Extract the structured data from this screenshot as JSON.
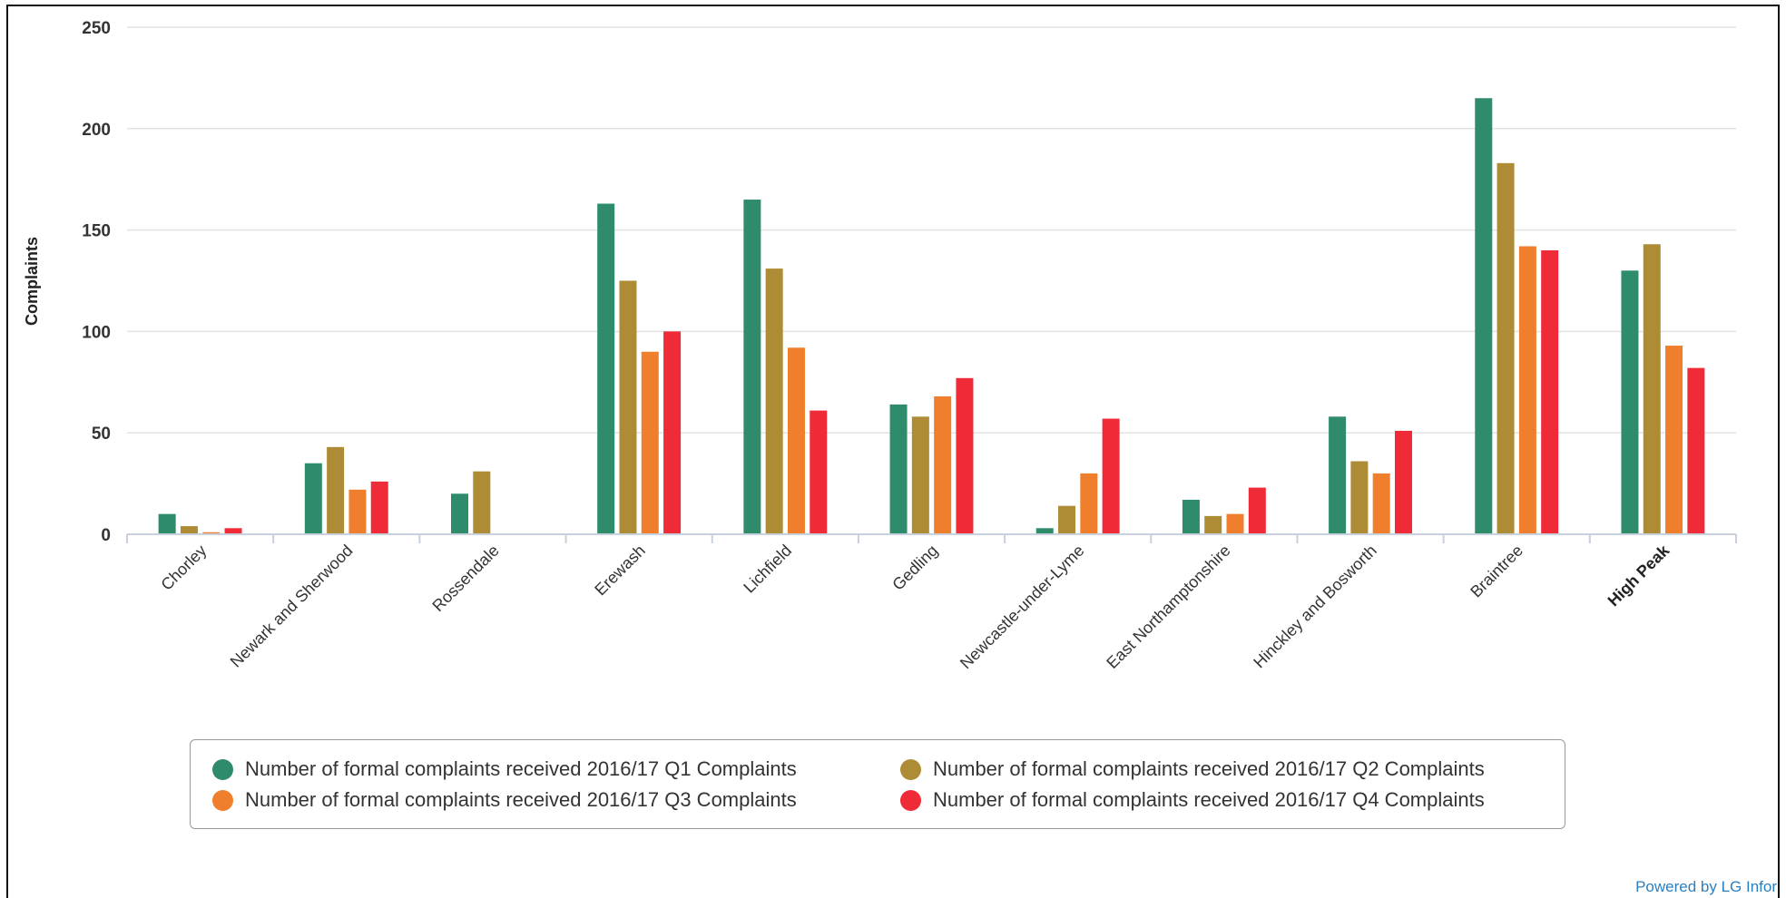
{
  "colors": {
    "q1": "#2e8b6c",
    "q2": "#ae8c36",
    "q3": "#f07f2d",
    "q4": "#ef2b38",
    "grid": "#e3e3e3",
    "axis": "#c8d0dc"
  },
  "chart_data": {
    "type": "bar",
    "title": "",
    "xlabel": "",
    "ylabel": "Complaints",
    "ylim": [
      0,
      250
    ],
    "yticks": [
      0,
      50,
      100,
      150,
      200,
      250
    ],
    "grid": true,
    "legend_position": "bottom",
    "categories": [
      "Chorley",
      "Newark and Sherwood",
      "Rossendale",
      "Erewash",
      "Lichfield",
      "Gedling",
      "Newcastle-under-Lyme",
      "East Northamptonshire",
      "Hinckley and Bosworth",
      "Braintree",
      "High Peak"
    ],
    "highlighted_category": "High Peak",
    "series": [
      {
        "name": "Number of formal complaints received 2016/17 Q1 Complaints",
        "color": "#2e8b6c",
        "values": [
          10,
          35,
          20,
          163,
          165,
          64,
          3,
          17,
          58,
          215,
          130
        ]
      },
      {
        "name": "Number of formal complaints received 2016/17 Q2 Complaints",
        "color": "#ae8c36",
        "values": [
          4,
          43,
          31,
          125,
          131,
          58,
          14,
          9,
          36,
          183,
          143
        ]
      },
      {
        "name": "Number of formal complaints received 2016/17 Q3 Complaints",
        "color": "#f07f2d",
        "values": [
          1,
          22,
          null,
          90,
          92,
          68,
          30,
          10,
          30,
          142,
          93
        ]
      },
      {
        "name": "Number of formal complaints received 2016/17 Q4 Complaints",
        "color": "#ef2b38",
        "values": [
          3,
          26,
          null,
          100,
          61,
          77,
          57,
          23,
          51,
          140,
          82
        ]
      }
    ]
  },
  "footer": {
    "credit": "Powered by LG Infor"
  }
}
